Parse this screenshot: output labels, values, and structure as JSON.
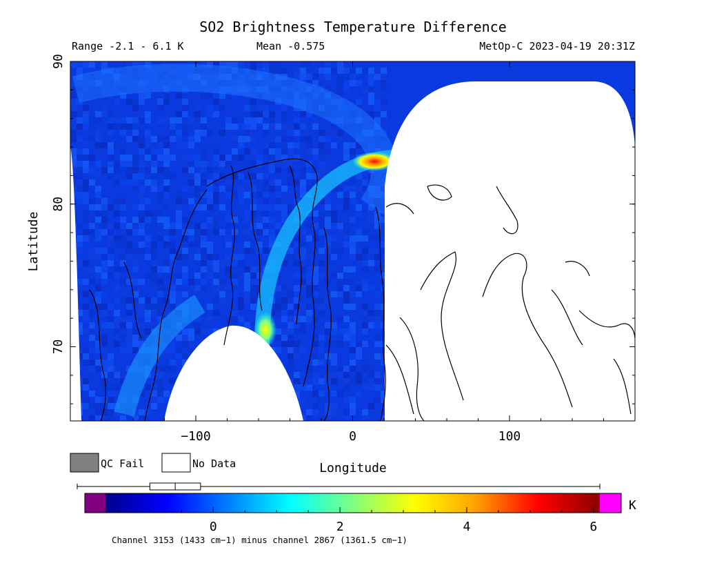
{
  "title": "SO2 Brightness Temperature Difference",
  "range_text": "Range -2.1 - 6.1 K",
  "mean_text": "Mean -0.575",
  "satellite_text": "MetOp-C 2023-04-19 20:31Z",
  "x_axis_label": "Longitude",
  "y_axis_label": "Latitude",
  "x_ticks": [
    {
      "value": -100,
      "label": "−100"
    },
    {
      "value": 0,
      "label": "0"
    },
    {
      "value": 100,
      "label": "100"
    }
  ],
  "y_ticks": [
    {
      "value": 70,
      "label": "70"
    },
    {
      "value": 80,
      "label": "80"
    },
    {
      "value": 90,
      "label": "90"
    }
  ],
  "map_extent": {
    "lon": [
      -180,
      180
    ],
    "lat": [
      64.8,
      90
    ]
  },
  "legend": {
    "qc_fail_label": "QC Fail",
    "qc_fail_color": "#808080",
    "no_data_label": "No Data",
    "no_data_color": "#ffffff"
  },
  "colorbar": {
    "range": [
      -1.7,
      6.1
    ],
    "ticks": [
      {
        "value": 0,
        "label": "0"
      },
      {
        "value": 2,
        "label": "2"
      },
      {
        "value": 4,
        "label": "4"
      },
      {
        "value": 6,
        "label": "6"
      }
    ],
    "unit_label": "K",
    "under_color": "#800080",
    "over_color": "#ff00ff",
    "colors": [
      "#00008b",
      "#0000ff",
      "#0080ff",
      "#00ffff",
      "#80ff80",
      "#ffff00",
      "#ffa000",
      "#ff0000",
      "#8b0000"
    ],
    "box_whisker": {
      "min": -2.1,
      "q1": -1.0,
      "median": -0.6,
      "q3": -0.2,
      "max": 6.1
    }
  },
  "footer_text": "Channel 3153 (1433 cm−1) minus channel 2867 (1361.5 cm−1)",
  "colors": {
    "frame": "#000000",
    "background_field": "#0a3adf",
    "no_data": "#ffffff"
  }
}
